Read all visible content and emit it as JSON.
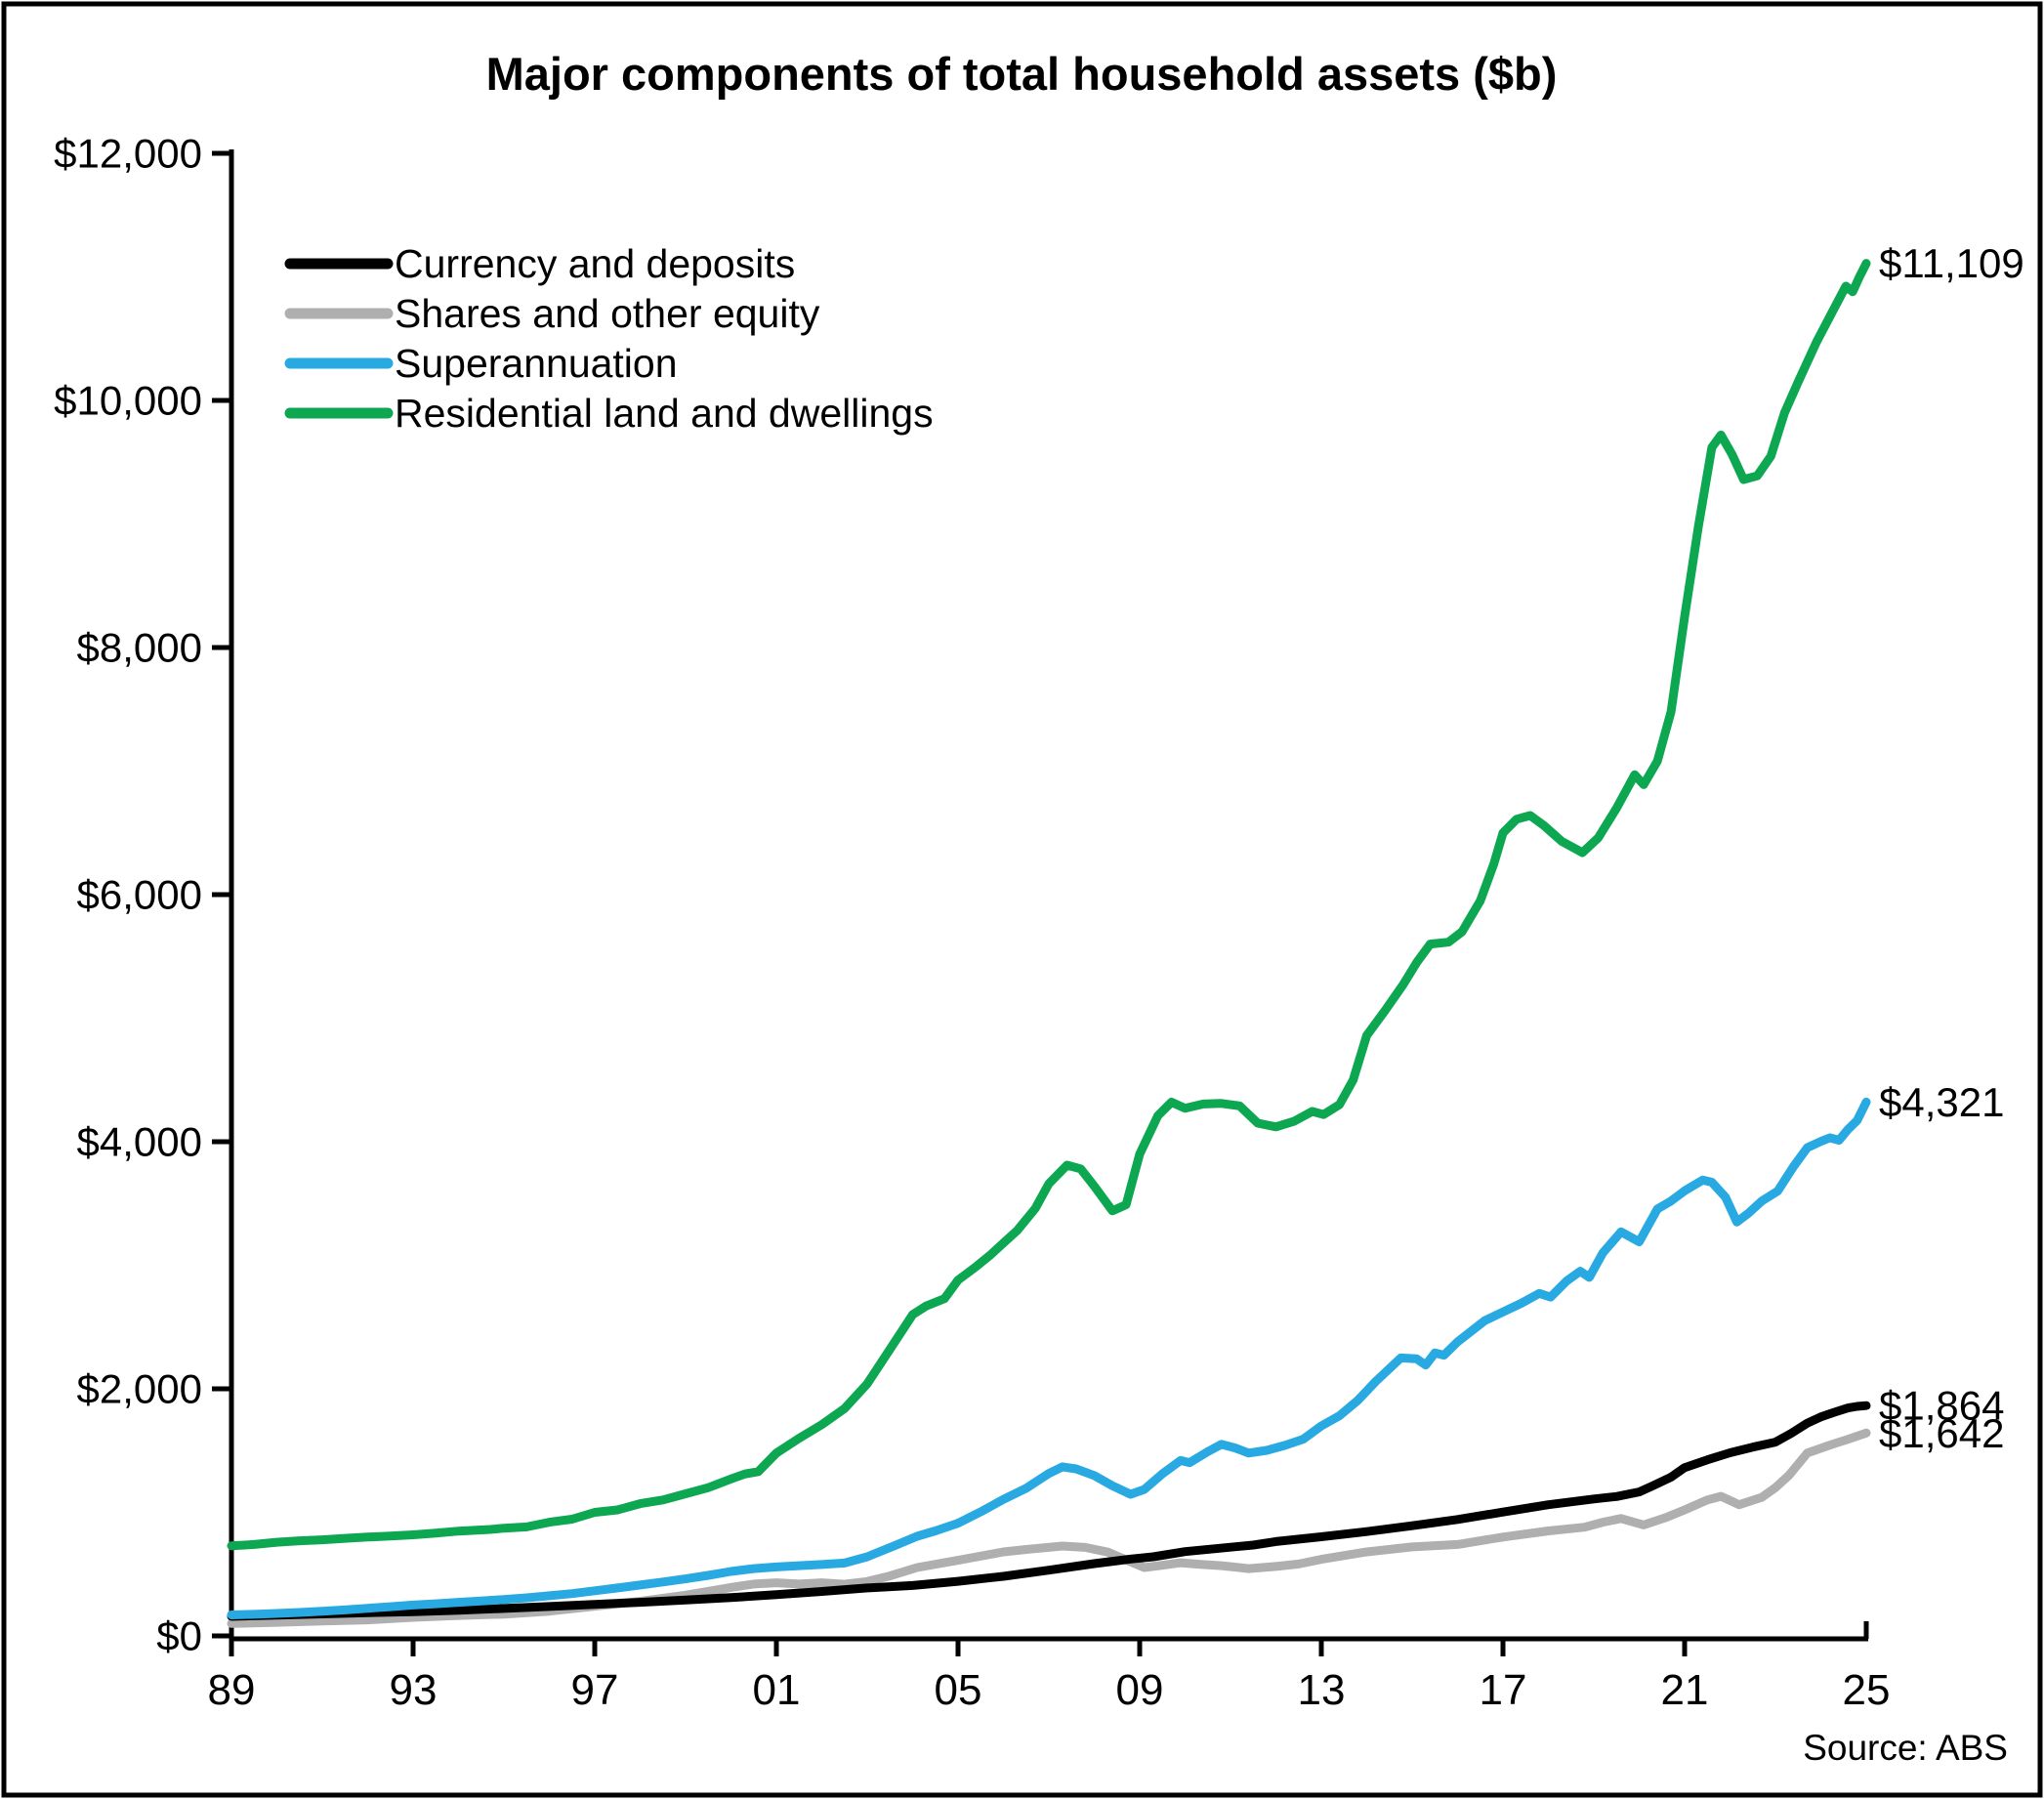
{
  "title": "Major components of total household assets ($b)",
  "source": "Source: ABS",
  "chart_data": {
    "type": "line",
    "title": "Major components of total household assets ($b)",
    "xlabel": "",
    "ylabel": "",
    "grid": false,
    "legend_position": "top-left-inside",
    "x_axis": {
      "min": 1989,
      "max": 2025,
      "tick_years": [
        1989,
        1993,
        1997,
        2001,
        2005,
        2009,
        2013,
        2017,
        2021,
        2025
      ],
      "tick_labels": [
        "89",
        "93",
        "97",
        "01",
        "05",
        "09",
        "13",
        "17",
        "21",
        "25"
      ]
    },
    "y_axis": {
      "min": 0,
      "max": 12000,
      "tick_step": 2000,
      "tick_labels": [
        "$0",
        "$2,000",
        "$4,000",
        "$6,000",
        "$8,000",
        "$10,000",
        "$12,000"
      ]
    },
    "series": [
      {
        "name": "Currency and deposits",
        "color": "#000000",
        "end_label": "$1,864",
        "end_value": 1864,
        "points": [
          [
            1989,
            158
          ],
          [
            1990,
            168
          ],
          [
            1991,
            178
          ],
          [
            1992,
            188
          ],
          [
            1993,
            196
          ],
          [
            1994,
            208
          ],
          [
            1995,
            222
          ],
          [
            1996,
            238
          ],
          [
            1997,
            255
          ],
          [
            1998,
            272
          ],
          [
            1999,
            290
          ],
          [
            2000,
            310
          ],
          [
            2001,
            334
          ],
          [
            2002,
            360
          ],
          [
            2003,
            388
          ],
          [
            2004,
            408
          ],
          [
            2005,
            442
          ],
          [
            2006,
            482
          ],
          [
            2007,
            532
          ],
          [
            2008,
            585
          ],
          [
            2008.8,
            622
          ],
          [
            2009.3,
            640
          ],
          [
            2010,
            682
          ],
          [
            2011,
            718
          ],
          [
            2011.5,
            735
          ],
          [
            2012,
            764
          ],
          [
            2013,
            802
          ],
          [
            2014,
            844
          ],
          [
            2015,
            892
          ],
          [
            2016,
            942
          ],
          [
            2017,
            1002
          ],
          [
            2018,
            1062
          ],
          [
            2019,
            1108
          ],
          [
            2019.5,
            1128
          ],
          [
            2020,
            1165
          ],
          [
            2020.3,
            1215
          ],
          [
            2020.7,
            1285
          ],
          [
            2021,
            1362
          ],
          [
            2021.5,
            1425
          ],
          [
            2022,
            1482
          ],
          [
            2022.5,
            1528
          ],
          [
            2023,
            1568
          ],
          [
            2023.35,
            1640
          ],
          [
            2023.7,
            1722
          ],
          [
            2024,
            1772
          ],
          [
            2024.3,
            1810
          ],
          [
            2024.6,
            1845
          ],
          [
            2024.8,
            1858
          ],
          [
            2025,
            1864
          ]
        ]
      },
      {
        "name": "Shares and other equity",
        "color": "#AFAFAF",
        "end_label": "$1,642",
        "end_value": 1642,
        "points": [
          [
            1989,
            100
          ],
          [
            1990,
            110
          ],
          [
            1991,
            120
          ],
          [
            1992,
            130
          ],
          [
            1993,
            150
          ],
          [
            1994,
            165
          ],
          [
            1995,
            176
          ],
          [
            1996,
            200
          ],
          [
            1997,
            240
          ],
          [
            1998,
            280
          ],
          [
            1999,
            330
          ],
          [
            2000,
            392
          ],
          [
            2000.5,
            420
          ],
          [
            2001,
            430
          ],
          [
            2001.5,
            420
          ],
          [
            2002,
            430
          ],
          [
            2002.5,
            418
          ],
          [
            2003,
            440
          ],
          [
            2003.5,
            485
          ],
          [
            2004.1,
            553
          ],
          [
            2005,
            612
          ],
          [
            2006,
            680
          ],
          [
            2006.5,
            700
          ],
          [
            2007.3,
            727
          ],
          [
            2007.8,
            716
          ],
          [
            2008.3,
            678
          ],
          [
            2008.8,
            600
          ],
          [
            2009.1,
            553
          ],
          [
            2009.5,
            572
          ],
          [
            2009.9,
            592
          ],
          [
            2010.3,
            580
          ],
          [
            2010.8,
            568
          ],
          [
            2011.4,
            545
          ],
          [
            2012,
            562
          ],
          [
            2012.5,
            582
          ],
          [
            2013,
            620
          ],
          [
            2014,
            680
          ],
          [
            2015,
            720
          ],
          [
            2016,
            740
          ],
          [
            2017,
            800
          ],
          [
            2018,
            850
          ],
          [
            2018.8,
            880
          ],
          [
            2019.2,
            920
          ],
          [
            2019.6,
            950
          ],
          [
            2020.1,
            898
          ],
          [
            2020.6,
            960
          ],
          [
            2021,
            1020
          ],
          [
            2021.5,
            1100
          ],
          [
            2021.8,
            1130
          ],
          [
            2022.2,
            1062
          ],
          [
            2022.7,
            1122
          ],
          [
            2023,
            1200
          ],
          [
            2023.3,
            1300
          ],
          [
            2023.7,
            1480
          ],
          [
            2024.2,
            1545
          ],
          [
            2024.6,
            1592
          ],
          [
            2025,
            1642
          ]
        ]
      },
      {
        "name": "Superannuation",
        "color": "#29A9E1",
        "end_label": "$4,321",
        "end_value": 4321,
        "points": [
          [
            1989,
            170
          ],
          [
            1989.5,
            175
          ],
          [
            1990,
            182
          ],
          [
            1990.5,
            190
          ],
          [
            1991,
            200
          ],
          [
            1991.5,
            210
          ],
          [
            1992,
            224
          ],
          [
            1992.5,
            236
          ],
          [
            1993,
            250
          ],
          [
            1993.5,
            260
          ],
          [
            1994,
            272
          ],
          [
            1994.5,
            282
          ],
          [
            1995,
            295
          ],
          [
            1995.5,
            308
          ],
          [
            1996,
            325
          ],
          [
            1996.5,
            342
          ],
          [
            1997,
            365
          ],
          [
            1997.5,
            388
          ],
          [
            1998,
            412
          ],
          [
            1998.5,
            436
          ],
          [
            1999,
            462
          ],
          [
            1999.5,
            490
          ],
          [
            2000,
            522
          ],
          [
            2000.5,
            545
          ],
          [
            2001,
            558
          ],
          [
            2001.5,
            568
          ],
          [
            2002,
            578
          ],
          [
            2002.5,
            590
          ],
          [
            2003,
            640
          ],
          [
            2003.6,
            730
          ],
          [
            2004.1,
            806
          ],
          [
            2004.5,
            850
          ],
          [
            2005,
            912
          ],
          [
            2005.5,
            1005
          ],
          [
            2006,
            1105
          ],
          [
            2006.5,
            1195
          ],
          [
            2007,
            1315
          ],
          [
            2007.3,
            1368
          ],
          [
            2007.6,
            1352
          ],
          [
            2008,
            1298
          ],
          [
            2008.4,
            1215
          ],
          [
            2008.8,
            1146
          ],
          [
            2009.1,
            1185
          ],
          [
            2009.5,
            1312
          ],
          [
            2009.9,
            1420
          ],
          [
            2010.1,
            1402
          ],
          [
            2010.5,
            1492
          ],
          [
            2010.8,
            1550
          ],
          [
            2011.1,
            1522
          ],
          [
            2011.4,
            1480
          ],
          [
            2011.8,
            1502
          ],
          [
            2012.2,
            1542
          ],
          [
            2012.6,
            1592
          ],
          [
            2013,
            1700
          ],
          [
            2013.4,
            1782
          ],
          [
            2013.8,
            1905
          ],
          [
            2014.2,
            2060
          ],
          [
            2014.75,
            2250
          ],
          [
            2015.1,
            2243
          ],
          [
            2015.3,
            2192
          ],
          [
            2015.5,
            2290
          ],
          [
            2015.7,
            2272
          ],
          [
            2016,
            2380
          ],
          [
            2016.6,
            2552
          ],
          [
            2017,
            2622
          ],
          [
            2017.4,
            2692
          ],
          [
            2017.8,
            2772
          ],
          [
            2018.05,
            2742
          ],
          [
            2018.4,
            2872
          ],
          [
            2018.7,
            2952
          ],
          [
            2018.9,
            2902
          ],
          [
            2019.2,
            3100
          ],
          [
            2019.6,
            3270
          ],
          [
            2020,
            3190
          ],
          [
            2020.4,
            3455
          ],
          [
            2020.7,
            3520
          ],
          [
            2021,
            3602
          ],
          [
            2021.4,
            3690
          ],
          [
            2021.6,
            3672
          ],
          [
            2021.9,
            3550
          ],
          [
            2022.15,
            3350
          ],
          [
            2022.4,
            3420
          ],
          [
            2022.7,
            3520
          ],
          [
            2023.05,
            3600
          ],
          [
            2023.4,
            3800
          ],
          [
            2023.7,
            3952
          ],
          [
            2024,
            4002
          ],
          [
            2024.2,
            4032
          ],
          [
            2024.4,
            4012
          ],
          [
            2024.6,
            4100
          ],
          [
            2024.8,
            4172
          ],
          [
            2025,
            4321
          ]
        ]
      },
      {
        "name": "Residential land and dwellings",
        "color": "#0CA750",
        "end_label": "$11,109",
        "end_value": 11109,
        "points": [
          [
            1989,
            730
          ],
          [
            1989.5,
            740
          ],
          [
            1990,
            758
          ],
          [
            1990.5,
            770
          ],
          [
            1991,
            778
          ],
          [
            1991.5,
            790
          ],
          [
            1992,
            800
          ],
          [
            1992.5,
            808
          ],
          [
            1993,
            818
          ],
          [
            1993.5,
            832
          ],
          [
            1994,
            848
          ],
          [
            1994.7,
            862
          ],
          [
            1995,
            872
          ],
          [
            1995.5,
            882
          ],
          [
            1996,
            920
          ],
          [
            1996.5,
            945
          ],
          [
            1997,
            1000
          ],
          [
            1997.5,
            1020
          ],
          [
            1998,
            1070
          ],
          [
            1998.5,
            1100
          ],
          [
            1999,
            1150
          ],
          [
            1999.5,
            1200
          ],
          [
            2000,
            1270
          ],
          [
            2000.3,
            1310
          ],
          [
            2000.6,
            1330
          ],
          [
            2001,
            1480
          ],
          [
            2001.5,
            1600
          ],
          [
            2002,
            1710
          ],
          [
            2002.5,
            1840
          ],
          [
            2003,
            2040
          ],
          [
            2003.5,
            2320
          ],
          [
            2004,
            2600
          ],
          [
            2004.3,
            2670
          ],
          [
            2004.7,
            2730
          ],
          [
            2005,
            2880
          ],
          [
            2005.4,
            2990
          ],
          [
            2005.7,
            3080
          ],
          [
            2006,
            3180
          ],
          [
            2006.3,
            3280
          ],
          [
            2006.7,
            3460
          ],
          [
            2007,
            3660
          ],
          [
            2007.4,
            3810
          ],
          [
            2007.7,
            3780
          ],
          [
            2008,
            3640
          ],
          [
            2008.4,
            3440
          ],
          [
            2008.7,
            3490
          ],
          [
            2009,
            3900
          ],
          [
            2009.4,
            4210
          ],
          [
            2009.7,
            4320
          ],
          [
            2010,
            4270
          ],
          [
            2010.4,
            4305
          ],
          [
            2010.8,
            4310
          ],
          [
            2011.2,
            4290
          ],
          [
            2011.6,
            4150
          ],
          [
            2012,
            4120
          ],
          [
            2012.4,
            4165
          ],
          [
            2012.8,
            4245
          ],
          [
            2013.05,
            4220
          ],
          [
            2013.4,
            4300
          ],
          [
            2013.7,
            4500
          ],
          [
            2014,
            4860
          ],
          [
            2014.4,
            5060
          ],
          [
            2014.8,
            5270
          ],
          [
            2015.1,
            5450
          ],
          [
            2015.4,
            5600
          ],
          [
            2015.8,
            5615
          ],
          [
            2016.1,
            5700
          ],
          [
            2016.5,
            5950
          ],
          [
            2016.8,
            6250
          ],
          [
            2017,
            6500
          ],
          [
            2017.3,
            6610
          ],
          [
            2017.6,
            6640
          ],
          [
            2017.9,
            6560
          ],
          [
            2018.3,
            6430
          ],
          [
            2018.75,
            6340
          ],
          [
            2019.1,
            6460
          ],
          [
            2019.5,
            6700
          ],
          [
            2019.9,
            6970
          ],
          [
            2020.1,
            6890
          ],
          [
            2020.4,
            7080
          ],
          [
            2020.7,
            7480
          ],
          [
            2021,
            8250
          ],
          [
            2021.3,
            8970
          ],
          [
            2021.6,
            9620
          ],
          [
            2021.8,
            9720
          ],
          [
            2022.05,
            9560
          ],
          [
            2022.3,
            9360
          ],
          [
            2022.6,
            9390
          ],
          [
            2022.9,
            9550
          ],
          [
            2023.2,
            9900
          ],
          [
            2023.5,
            10150
          ],
          [
            2023.9,
            10470
          ],
          [
            2024.2,
            10680
          ],
          [
            2024.55,
            10925
          ],
          [
            2024.7,
            10880
          ],
          [
            2024.85,
            11000
          ],
          [
            2025,
            11109
          ]
        ]
      }
    ]
  }
}
